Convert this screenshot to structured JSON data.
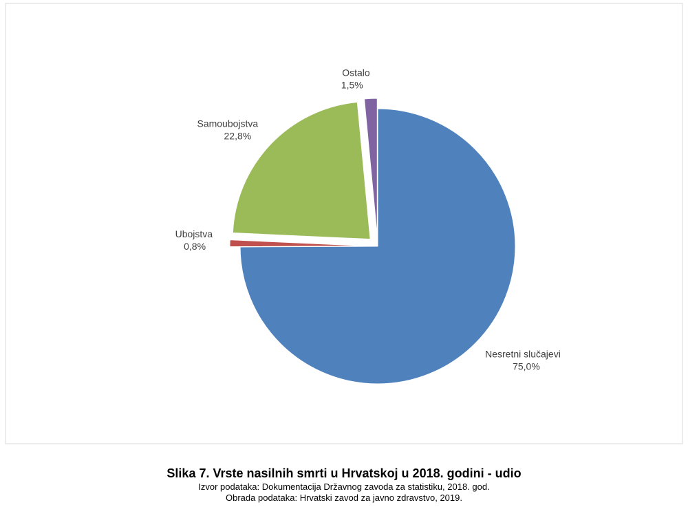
{
  "chart_data": {
    "type": "pie",
    "title": "Slika 7. Vrste nasilnih smrti u Hrvatskoj u 2018. godini - udio",
    "notes": [
      "Izvor podataka: Dokumentacija Državnog zavoda za statistiku, 2018. god.",
      "Obrada podataka: Hrvatski zavod za javno zdravstvo, 2019."
    ],
    "categories": [
      "Nesretni slučajevi",
      "Ubojstva",
      "Samoubojstva",
      "Ostalo"
    ],
    "values": [
      75.0,
      0.8,
      22.8,
      1.5
    ],
    "value_labels": [
      "75,0%",
      "0,8%",
      "22,8%",
      "1,5%"
    ],
    "colors": [
      "#4f81bd",
      "#c0504d",
      "#9bbb59",
      "#8064a2"
    ]
  }
}
